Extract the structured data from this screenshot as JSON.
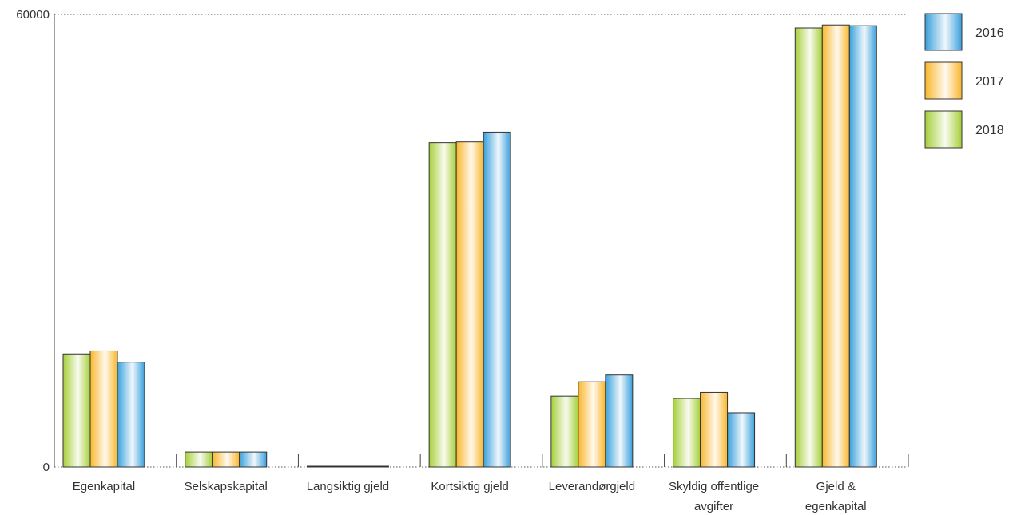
{
  "chart_data": {
    "type": "bar",
    "categories": [
      [
        "Egenkapital"
      ],
      [
        "Selskapskapital"
      ],
      [
        "Langsiktig gjeld"
      ],
      [
        "Kortsiktig gjeld"
      ],
      [
        "Leverandørgjeld"
      ],
      [
        "Skyldig offentlige",
        "avgifter"
      ],
      [
        "Gjeld &",
        "egenkapital"
      ]
    ],
    "series": [
      {
        "name": "2018",
        "color": "#a6cf3a",
        "values": [
          15000,
          2000,
          100,
          43000,
          9400,
          9100,
          58200
        ]
      },
      {
        "name": "2017",
        "color": "#f9b72c",
        "values": [
          15400,
          2000,
          100,
          43100,
          11300,
          9900,
          58600
        ]
      },
      {
        "name": "2016",
        "color": "#3aa0dc",
        "values": [
          13900,
          2000,
          100,
          44400,
          12200,
          7200,
          58500
        ]
      }
    ],
    "yticks": [
      "0",
      "60000"
    ],
    "ylim": [
      0,
      60000
    ],
    "grid": "dotted lines at top and baseline",
    "legend": {
      "placement": "top-right",
      "items": [
        {
          "label": "2016",
          "color": "#3aa0dc"
        },
        {
          "label": "2017",
          "color": "#f9b72c"
        },
        {
          "label": "2018",
          "color": "#a6cf3a"
        }
      ]
    }
  }
}
